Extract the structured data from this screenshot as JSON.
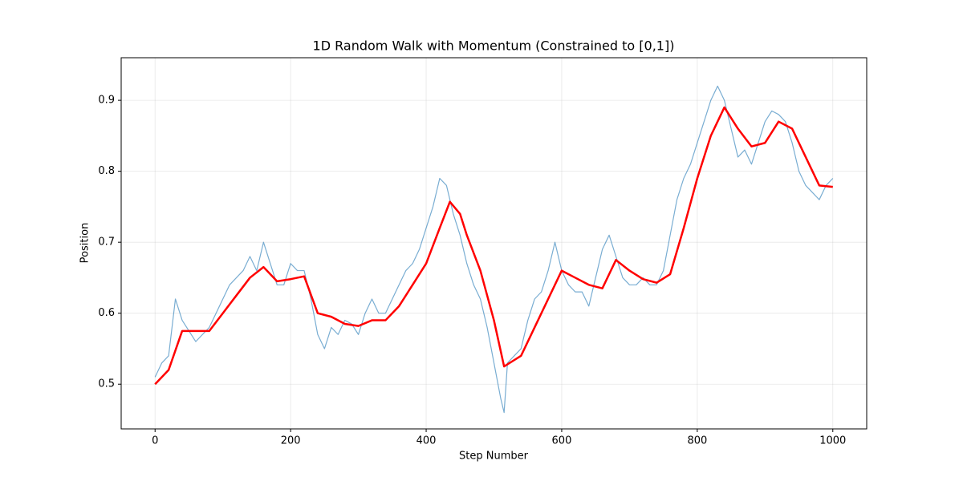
{
  "chart_data": {
    "type": "line",
    "title": "1D Random Walk with Momentum (Constrained to [0,1])",
    "x_label": "Step Number",
    "y_label": "Position",
    "xlim": [
      -50,
      1050
    ],
    "ylim": [
      0.437,
      0.96
    ],
    "xticks": [
      0,
      200,
      400,
      600,
      800,
      1000
    ],
    "yticks": [
      0.5,
      0.6,
      0.7,
      0.8,
      0.9
    ],
    "grid": true,
    "series": [
      {
        "color": "#1f77b4",
        "opacity": 0.6,
        "linewidth": 1.2,
        "x": [
          0,
          10,
          20,
          30,
          40,
          50,
          60,
          70,
          80,
          90,
          100,
          110,
          120,
          130,
          140,
          150,
          160,
          170,
          180,
          190,
          200,
          210,
          220,
          230,
          240,
          250,
          260,
          270,
          280,
          290,
          300,
          310,
          320,
          330,
          340,
          350,
          360,
          370,
          380,
          390,
          400,
          410,
          420,
          430,
          440,
          450,
          460,
          470,
          480,
          490,
          500,
          510,
          515,
          520,
          530,
          540,
          550,
          560,
          570,
          580,
          590,
          600,
          610,
          620,
          630,
          640,
          650,
          660,
          670,
          680,
          690,
          700,
          710,
          720,
          730,
          740,
          750,
          760,
          770,
          780,
          790,
          800,
          810,
          820,
          830,
          840,
          850,
          860,
          870,
          880,
          890,
          900,
          910,
          920,
          930,
          940,
          950,
          960,
          970,
          980,
          990,
          1000
        ],
        "values": [
          0.51,
          0.53,
          0.54,
          0.62,
          0.59,
          0.575,
          0.56,
          0.57,
          0.58,
          0.6,
          0.62,
          0.64,
          0.65,
          0.66,
          0.68,
          0.66,
          0.7,
          0.67,
          0.64,
          0.64,
          0.67,
          0.66,
          0.66,
          0.62,
          0.57,
          0.55,
          0.58,
          0.57,
          0.59,
          0.585,
          0.57,
          0.6,
          0.62,
          0.6,
          0.6,
          0.62,
          0.64,
          0.66,
          0.67,
          0.69,
          0.72,
          0.75,
          0.79,
          0.78,
          0.74,
          0.71,
          0.67,
          0.64,
          0.62,
          0.58,
          0.53,
          0.48,
          0.46,
          0.53,
          0.54,
          0.55,
          0.59,
          0.62,
          0.63,
          0.66,
          0.7,
          0.66,
          0.64,
          0.63,
          0.63,
          0.61,
          0.65,
          0.69,
          0.71,
          0.68,
          0.65,
          0.64,
          0.64,
          0.65,
          0.64,
          0.64,
          0.66,
          0.71,
          0.76,
          0.79,
          0.81,
          0.84,
          0.87,
          0.9,
          0.92,
          0.9,
          0.86,
          0.82,
          0.83,
          0.81,
          0.84,
          0.87,
          0.885,
          0.88,
          0.87,
          0.84,
          0.8,
          0.78,
          0.77,
          0.76,
          0.78,
          0.79
        ]
      },
      {
        "color": "#ff0000",
        "opacity": 1,
        "linewidth": 2.5,
        "x": [
          0,
          20,
          40,
          60,
          80,
          100,
          120,
          140,
          160,
          180,
          200,
          220,
          240,
          260,
          280,
          300,
          320,
          340,
          360,
          380,
          400,
          420,
          435,
          450,
          460,
          480,
          500,
          515,
          540,
          560,
          580,
          600,
          620,
          640,
          660,
          680,
          700,
          720,
          740,
          760,
          780,
          800,
          820,
          840,
          860,
          880,
          900,
          920,
          940,
          960,
          980,
          1000
        ],
        "values": [
          0.5,
          0.52,
          0.575,
          0.575,
          0.575,
          0.6,
          0.625,
          0.65,
          0.665,
          0.645,
          0.648,
          0.652,
          0.6,
          0.595,
          0.585,
          0.582,
          0.59,
          0.59,
          0.61,
          0.64,
          0.67,
          0.72,
          0.757,
          0.74,
          0.71,
          0.66,
          0.59,
          0.525,
          0.54,
          0.58,
          0.62,
          0.66,
          0.65,
          0.64,
          0.635,
          0.675,
          0.66,
          0.648,
          0.643,
          0.655,
          0.72,
          0.79,
          0.85,
          0.89,
          0.86,
          0.835,
          0.84,
          0.87,
          0.86,
          0.82,
          0.78,
          0.778
        ]
      }
    ]
  }
}
